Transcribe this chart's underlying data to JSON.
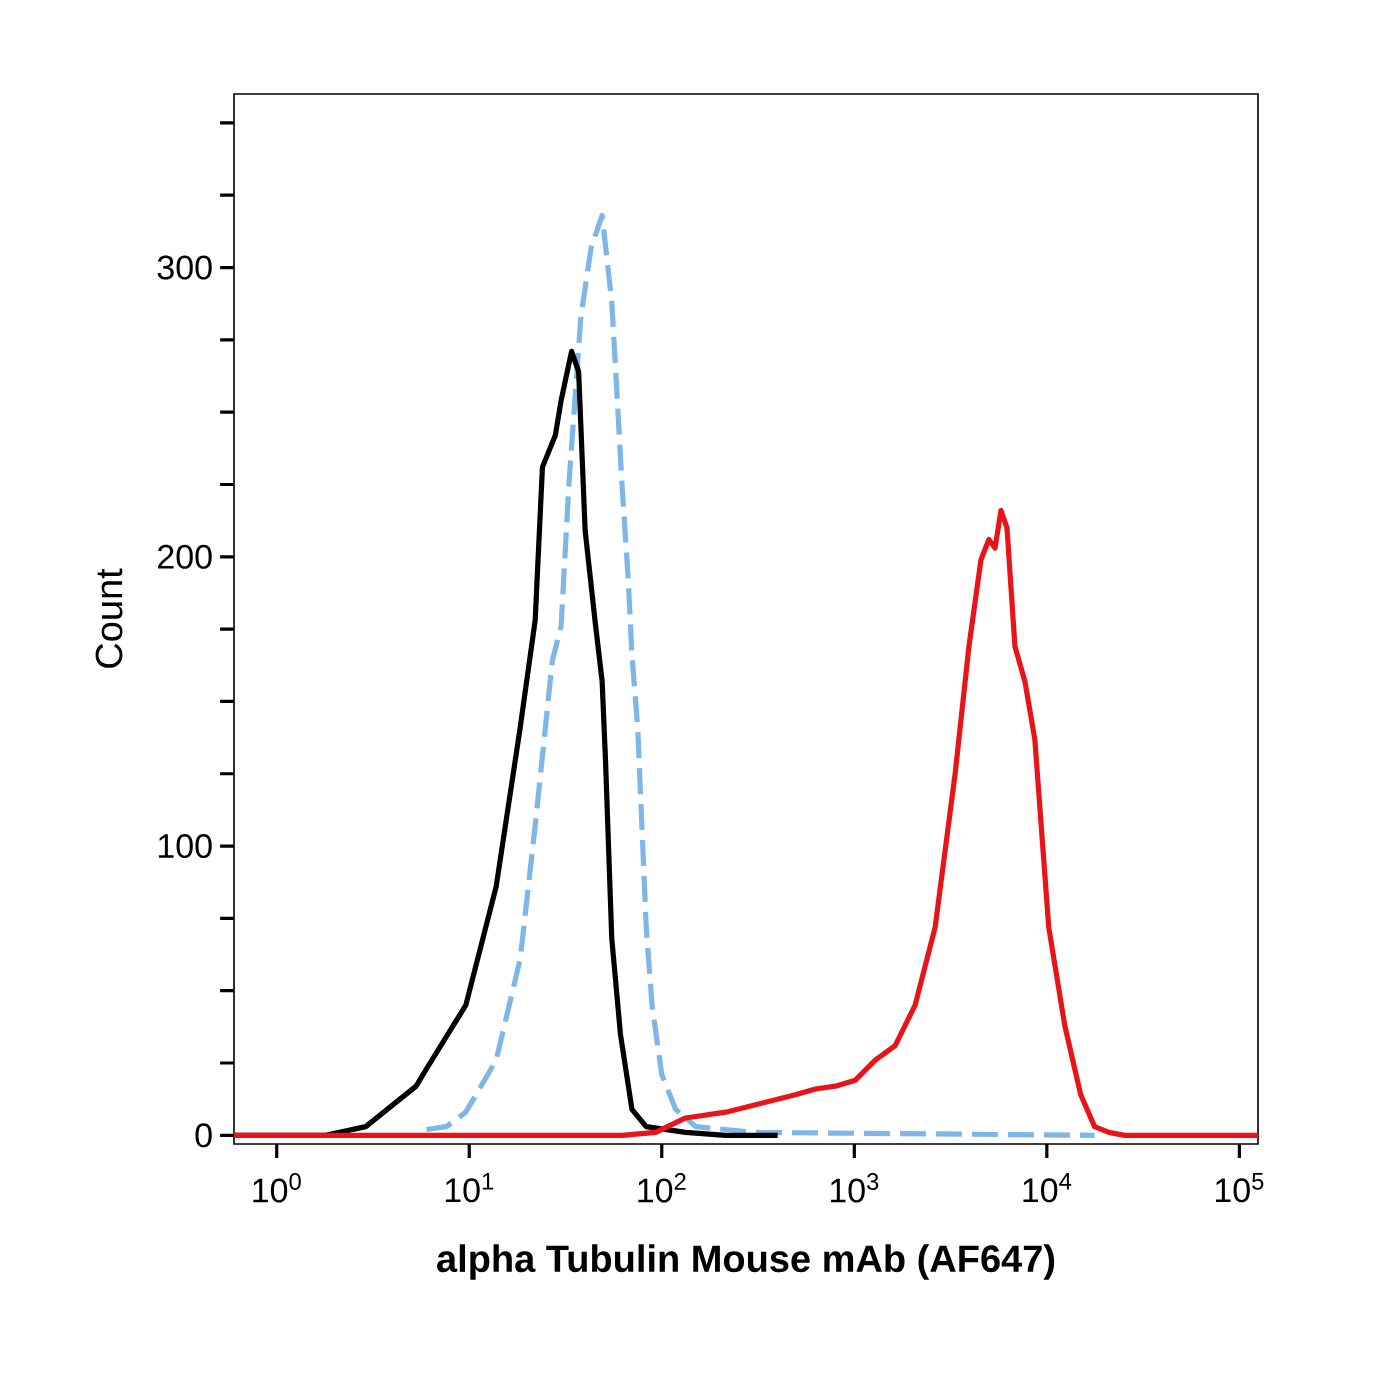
{
  "chart_data": {
    "type": "line",
    "xlabel": "alpha Tubulin Mouse mAb (AF647)",
    "ylabel": "Count",
    "log": "x",
    "xlim": [
      0.6,
      125000
    ],
    "ylim": [
      -3,
      360
    ],
    "xticks": [
      {
        "value": 1,
        "label": "10$^{0}$"
      },
      {
        "value": 10,
        "label": "10$^{1}$"
      },
      {
        "value": 100,
        "label": "10$^{2}$"
      },
      {
        "value": 1000,
        "label": "10$^{3}$"
      },
      {
        "value": 10000,
        "label": "10$^{4}$"
      },
      {
        "value": 100000,
        "label": "10$^{5}$"
      }
    ],
    "yticks": [
      0,
      {
        "value": 25,
        "label": null
      },
      {
        "value": 50,
        "label": null
      },
      {
        "value": 75,
        "label": null
      },
      100,
      {
        "value": 125,
        "label": null
      },
      {
        "value": 150,
        "label": null
      },
      {
        "value": 175,
        "label": null
      },
      200,
      {
        "value": 225,
        "label": null
      },
      {
        "value": 250,
        "label": null
      },
      {
        "value": 275,
        "label": null
      },
      300,
      {
        "value": 325,
        "label": null
      },
      {
        "value": 350,
        "label": null
      }
    ],
    "series": [
      {
        "color": "#7eb6e8",
        "line_style": "dashed",
        "x": [
          6.0,
          7.6,
          9.6,
          13.8,
          18.4,
          22,
          27,
          30,
          33,
          36,
          38,
          43,
          49,
          55,
          58,
          62,
          67,
          70,
          75,
          83,
          89,
          100,
          118,
          150,
          307,
          17700
        ],
        "values": [
          2,
          3,
          8,
          26,
          61,
          107,
          164,
          176,
          226,
          261,
          283,
          307,
          318,
          288,
          261,
          226,
          192,
          166,
          141,
          72,
          45,
          21,
          9,
          3,
          1,
          0
        ]
      },
      {
        "color": "#000000",
        "line_style": "solid",
        "x": [
          0.6,
          1.8,
          2.9,
          5.3,
          6.0,
          9.6,
          13.8,
          18.4,
          22,
          24,
          28,
          30,
          34,
          37,
          40,
          45,
          49,
          51,
          55,
          61,
          70,
          83,
          133,
          215,
          400
        ],
        "values": [
          0,
          0,
          3,
          17,
          23,
          45,
          86,
          141,
          178,
          231,
          242,
          254,
          271,
          264,
          209,
          178,
          157,
          130,
          68,
          35,
          9,
          3,
          1,
          0,
          0
        ]
      },
      {
        "color": "#e8141a",
        "line_style": "solid",
        "x": [
          0.6,
          62,
          93,
          133,
          215,
          494,
          628,
          798,
          1010,
          1285,
          1630,
          2070,
          2630,
          3340,
          3940,
          4550,
          5000,
          5380,
          5780,
          6210,
          6830,
          7690,
          8660,
          10230,
          12390,
          15000,
          17700,
          21000,
          25400,
          125000
        ],
        "values": [
          0,
          0,
          1,
          6,
          8,
          14,
          16,
          17,
          19,
          26,
          31,
          45,
          72,
          125,
          169,
          199,
          206,
          203,
          216,
          210,
          169,
          157,
          137,
          72,
          38,
          14,
          3,
          1,
          0,
          0
        ]
      }
    ]
  }
}
